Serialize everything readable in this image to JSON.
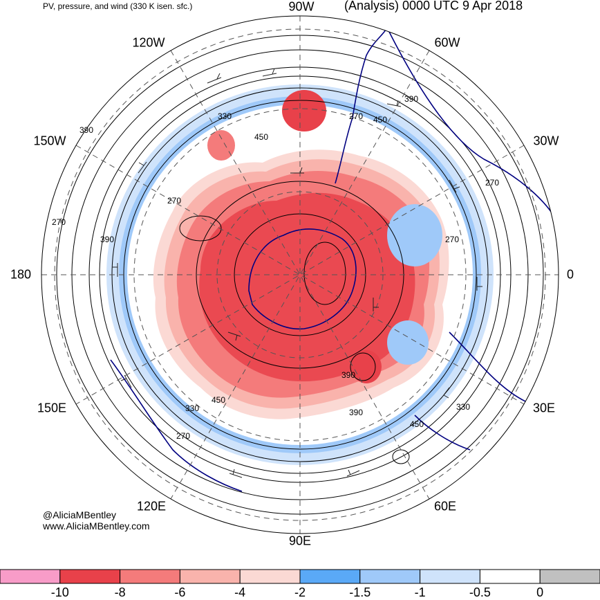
{
  "header": {
    "title_left": "PV, pressure, and wind (330 K isen. sfc.)",
    "title_right": "(Analysis) 0000 UTC 9 Apr 2018"
  },
  "credits": {
    "twitter": "@AliciaMBentley",
    "website": "www.AliciaMBentley.com"
  },
  "map": {
    "projection": "south-polar-stereographic",
    "longitude_labels": [
      {
        "id": "lon-90w",
        "text": "90W"
      },
      {
        "id": "lon-60w",
        "text": "60W"
      },
      {
        "id": "lon-30w",
        "text": "30W"
      },
      {
        "id": "lon-0",
        "text": "0"
      },
      {
        "id": "lon-30e",
        "text": "30E"
      },
      {
        "id": "lon-60e",
        "text": "60E"
      },
      {
        "id": "lon-90e",
        "text": "90E"
      },
      {
        "id": "lon-120e",
        "text": "120E"
      },
      {
        "id": "lon-150e",
        "text": "150E"
      },
      {
        "id": "lon-180",
        "text": "180"
      },
      {
        "id": "lon-150w",
        "text": "150W"
      },
      {
        "id": "lon-120w",
        "text": "120W"
      }
    ],
    "pressure_contour_labels": [
      "330",
      "390",
      "450",
      "270",
      "450",
      "390",
      "270",
      "270",
      "390",
      "270",
      "270",
      "390",
      "450",
      "330",
      "390",
      "450",
      "330",
      "270"
    ],
    "colors": {
      "pv_very_negative": "#f89cc8",
      "pv_neg_8_10": "#e8414a",
      "pv_neg_6_8": "#f47b7b",
      "pv_neg_4_6": "#f9b3ac",
      "pv_neg_2_4": "#fbd9d4",
      "pv_neg_15_2": "#5aa9f7",
      "pv_neg_1_15": "#9fc9f9",
      "pv_neg_05_1": "#cfe3fb",
      "pv_0_05": "#ffffff",
      "pv_positive": "#c0c0c0",
      "coastline": "#000080",
      "contour": "#000000",
      "grid": "#555555"
    }
  },
  "colorbar": {
    "labels": [
      "-10",
      "-8",
      "-6",
      "-4",
      "-2",
      "-1.5",
      "-1",
      "-0.5",
      "0"
    ],
    "bins": [
      {
        "color": "#f89cc8"
      },
      {
        "color": "#e8414a"
      },
      {
        "color": "#f47b7b"
      },
      {
        "color": "#f9b3ac"
      },
      {
        "color": "#fbd9d4"
      },
      {
        "color": "#5aa9f7"
      },
      {
        "color": "#9fc9f9"
      },
      {
        "color": "#cfe3fb"
      },
      {
        "color": "#ffffff"
      },
      {
        "color": "#c0c0c0"
      }
    ]
  }
}
